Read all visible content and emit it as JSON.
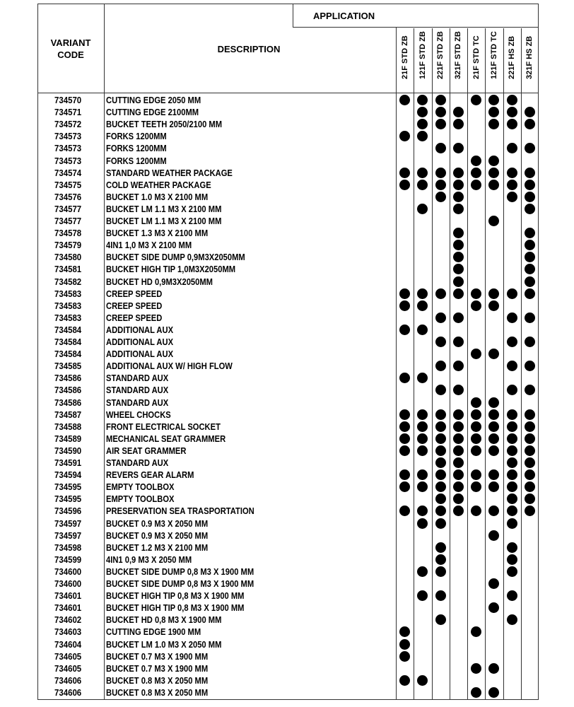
{
  "header": {
    "variant_code": "VARIANT CODE",
    "description": "DESCRIPTION",
    "application": "APPLICATION",
    "columns": [
      "21F STD ZB",
      "121F STD ZB",
      "221F STD ZB",
      "321F STD ZB",
      "21F STD TC",
      "121F STD TC",
      "221F HS ZB",
      "321F HS ZB"
    ]
  },
  "rows": [
    {
      "code": "734570",
      "desc": "CUTTING EDGE 2050 MM",
      "apps": [
        1,
        1,
        1,
        0,
        1,
        1,
        1,
        0
      ]
    },
    {
      "code": "734571",
      "desc": "CUTTING EDGE 2100MM",
      "apps": [
        0,
        1,
        1,
        1,
        0,
        1,
        1,
        1
      ]
    },
    {
      "code": "734572",
      "desc": "BUCKET TEETH 2050/2100 MM",
      "apps": [
        0,
        1,
        1,
        1,
        0,
        1,
        1,
        1
      ]
    },
    {
      "code": "734573",
      "desc": "FORKS 1200MM",
      "apps": [
        1,
        1,
        0,
        0,
        0,
        0,
        0,
        0
      ]
    },
    {
      "code": "734573",
      "desc": "FORKS 1200MM",
      "apps": [
        0,
        0,
        1,
        1,
        0,
        0,
        1,
        1
      ]
    },
    {
      "code": "734573",
      "desc": "FORKS 1200MM",
      "apps": [
        0,
        0,
        0,
        0,
        1,
        1,
        0,
        0
      ]
    },
    {
      "code": "734574",
      "desc": "STANDARD WEATHER PACKAGE",
      "apps": [
        1,
        1,
        1,
        1,
        1,
        1,
        1,
        1
      ]
    },
    {
      "code": "734575",
      "desc": "COLD  WEATHER PACKAGE",
      "apps": [
        1,
        1,
        1,
        1,
        1,
        1,
        1,
        1
      ]
    },
    {
      "code": "734576",
      "desc": "BUCKET 1.0 M3 X 2100 MM",
      "apps": [
        0,
        0,
        1,
        1,
        0,
        0,
        1,
        1
      ]
    },
    {
      "code": "734577",
      "desc": "BUCKET LM 1.1 M3 X 2100 MM",
      "apps": [
        0,
        1,
        0,
        1,
        0,
        0,
        0,
        1
      ]
    },
    {
      "code": "734577",
      "desc": "BUCKET LM 1.1 M3 X 2100 MM",
      "apps": [
        0,
        0,
        0,
        0,
        0,
        1,
        0,
        0
      ]
    },
    {
      "code": "734578",
      "desc": "BUCKET 1.3 M3 X 2100 MM",
      "apps": [
        0,
        0,
        0,
        1,
        0,
        0,
        0,
        1
      ]
    },
    {
      "code": "734579",
      "desc": "4IN1 1,0 M3 X 2100 MM",
      "apps": [
        0,
        0,
        0,
        1,
        0,
        0,
        0,
        1
      ]
    },
    {
      "code": "734580",
      "desc": "BUCKET SIDE DUMP 0,9M3X2050MM",
      "apps": [
        0,
        0,
        0,
        1,
        0,
        0,
        0,
        1
      ]
    },
    {
      "code": "734581",
      "desc": "BUCKET HIGH TIP 1,0M3X2050MM",
      "apps": [
        0,
        0,
        0,
        1,
        0,
        0,
        0,
        1
      ]
    },
    {
      "code": "734582",
      "desc": "BUCKET HD 0,9M3X2050MM",
      "apps": [
        0,
        0,
        0,
        1,
        0,
        0,
        0,
        1
      ]
    },
    {
      "code": "734583",
      "desc": "CREEP SPEED",
      "apps": [
        1,
        1,
        1,
        1,
        1,
        1,
        1,
        1
      ]
    },
    {
      "code": "734583",
      "desc": "CREEP SPEED",
      "apps": [
        1,
        1,
        0,
        0,
        1,
        1,
        0,
        0
      ]
    },
    {
      "code": "734583",
      "desc": "CREEP SPEED",
      "apps": [
        0,
        0,
        1,
        1,
        0,
        0,
        1,
        1
      ]
    },
    {
      "code": "734584",
      "desc": "ADDITIONAL AUX",
      "apps": [
        1,
        1,
        0,
        0,
        0,
        0,
        0,
        0
      ]
    },
    {
      "code": "734584",
      "desc": "ADDITIONAL AUX",
      "apps": [
        0,
        0,
        1,
        1,
        0,
        0,
        1,
        1
      ]
    },
    {
      "code": "734584",
      "desc": "ADDITIONAL AUX",
      "apps": [
        0,
        0,
        0,
        0,
        1,
        1,
        0,
        0
      ]
    },
    {
      "code": "734585",
      "desc": "ADDITIONAL AUX W/ HIGH FLOW",
      "apps": [
        0,
        0,
        1,
        1,
        0,
        0,
        1,
        1
      ]
    },
    {
      "code": "734586",
      "desc": "STANDARD AUX",
      "apps": [
        1,
        1,
        0,
        0,
        0,
        0,
        0,
        0
      ]
    },
    {
      "code": "734586",
      "desc": "STANDARD AUX",
      "apps": [
        0,
        0,
        1,
        1,
        0,
        0,
        1,
        1
      ]
    },
    {
      "code": "734586",
      "desc": "STANDARD AUX",
      "apps": [
        0,
        0,
        0,
        0,
        1,
        1,
        0,
        0
      ]
    },
    {
      "code": "734587",
      "desc": "WHEEL CHOCKS",
      "apps": [
        1,
        1,
        1,
        1,
        1,
        1,
        1,
        1
      ]
    },
    {
      "code": "734588",
      "desc": "FRONT ELECTRICAL SOCKET",
      "apps": [
        1,
        1,
        1,
        1,
        1,
        1,
        1,
        1
      ]
    },
    {
      "code": "734589",
      "desc": "MECHANICAL SEAT GRAMMER",
      "apps": [
        1,
        1,
        1,
        1,
        1,
        1,
        1,
        1
      ]
    },
    {
      "code": "734590",
      "desc": "AIR SEAT GRAMMER",
      "apps": [
        1,
        1,
        1,
        1,
        1,
        1,
        1,
        1
      ]
    },
    {
      "code": "734591",
      "desc": "STANDARD AUX",
      "apps": [
        0,
        0,
        1,
        1,
        0,
        0,
        1,
        1
      ]
    },
    {
      "code": "734594",
      "desc": "REVERS GEAR ALARM",
      "apps": [
        1,
        1,
        1,
        1,
        1,
        1,
        1,
        1
      ]
    },
    {
      "code": "734595",
      "desc": "EMPTY TOOLBOX",
      "apps": [
        1,
        1,
        1,
        1,
        1,
        1,
        1,
        1
      ]
    },
    {
      "code": "734595",
      "desc": "EMPTY TOOLBOX",
      "apps": [
        0,
        0,
        1,
        1,
        0,
        0,
        1,
        1
      ]
    },
    {
      "code": "734596",
      "desc": "PRESERVATION SEA TRASPORTATION",
      "apps": [
        1,
        1,
        1,
        1,
        1,
        1,
        1,
        1
      ]
    },
    {
      "code": "734597",
      "desc": "BUCKET 0.9 M3 X 2050 MM",
      "apps": [
        0,
        1,
        1,
        0,
        0,
        0,
        1,
        0
      ]
    },
    {
      "code": "734597",
      "desc": "BUCKET 0.9 M3 X 2050 MM",
      "apps": [
        0,
        0,
        0,
        0,
        0,
        1,
        0,
        0
      ]
    },
    {
      "code": "734598",
      "desc": "BUCKET 1.2 M3 X 2100 MM",
      "apps": [
        0,
        0,
        1,
        0,
        0,
        0,
        1,
        0
      ]
    },
    {
      "code": "734599",
      "desc": "4IN1 0,9 M3 X 2050 MM",
      "apps": [
        0,
        0,
        1,
        0,
        0,
        0,
        1,
        0
      ]
    },
    {
      "code": "734600",
      "desc": "BUCKET SIDE DUMP 0,8 M3 X 1900 MM",
      "apps": [
        0,
        1,
        1,
        0,
        0,
        0,
        1,
        0
      ]
    },
    {
      "code": "734600",
      "desc": "BUCKET SIDE DUMP 0,8 M3 X 1900 MM",
      "apps": [
        0,
        0,
        0,
        0,
        0,
        1,
        0,
        0
      ]
    },
    {
      "code": "734601",
      "desc": "BUCKET HIGH TIP 0,8 M3 X 1900 MM",
      "apps": [
        0,
        1,
        1,
        0,
        0,
        0,
        1,
        0
      ]
    },
    {
      "code": "734601",
      "desc": "BUCKET HIGH TIP 0,8 M3 X 1900 MM",
      "apps": [
        0,
        0,
        0,
        0,
        0,
        1,
        0,
        0
      ]
    },
    {
      "code": "734602",
      "desc": "BUCKET HD 0,8 M3 X 1900 MM",
      "apps": [
        0,
        0,
        1,
        0,
        0,
        0,
        1,
        0
      ]
    },
    {
      "code": "734603",
      "desc": "CUTTING EDGE 1900 MM",
      "apps": [
        1,
        0,
        0,
        0,
        1,
        0,
        0,
        0
      ]
    },
    {
      "code": "734604",
      "desc": "BUCKET LM 1.0 M3 X 2050 MM",
      "apps": [
        1,
        0,
        0,
        0,
        0,
        0,
        0,
        0
      ]
    },
    {
      "code": "734605",
      "desc": "BUCKET 0.7 M3 X 1900 MM",
      "apps": [
        1,
        0,
        0,
        0,
        0,
        0,
        0,
        0
      ]
    },
    {
      "code": "734605",
      "desc": "BUCKET 0.7 M3 X 1900 MM",
      "apps": [
        0,
        0,
        0,
        0,
        1,
        1,
        0,
        0
      ]
    },
    {
      "code": "734606",
      "desc": "BUCKET 0.8 M3 X 2050 MM",
      "apps": [
        1,
        1,
        0,
        0,
        0,
        0,
        0,
        0
      ]
    },
    {
      "code": "734606",
      "desc": "BUCKET 0.8 M3 X 2050 MM",
      "apps": [
        0,
        0,
        0,
        0,
        1,
        1,
        0,
        0
      ]
    }
  ]
}
